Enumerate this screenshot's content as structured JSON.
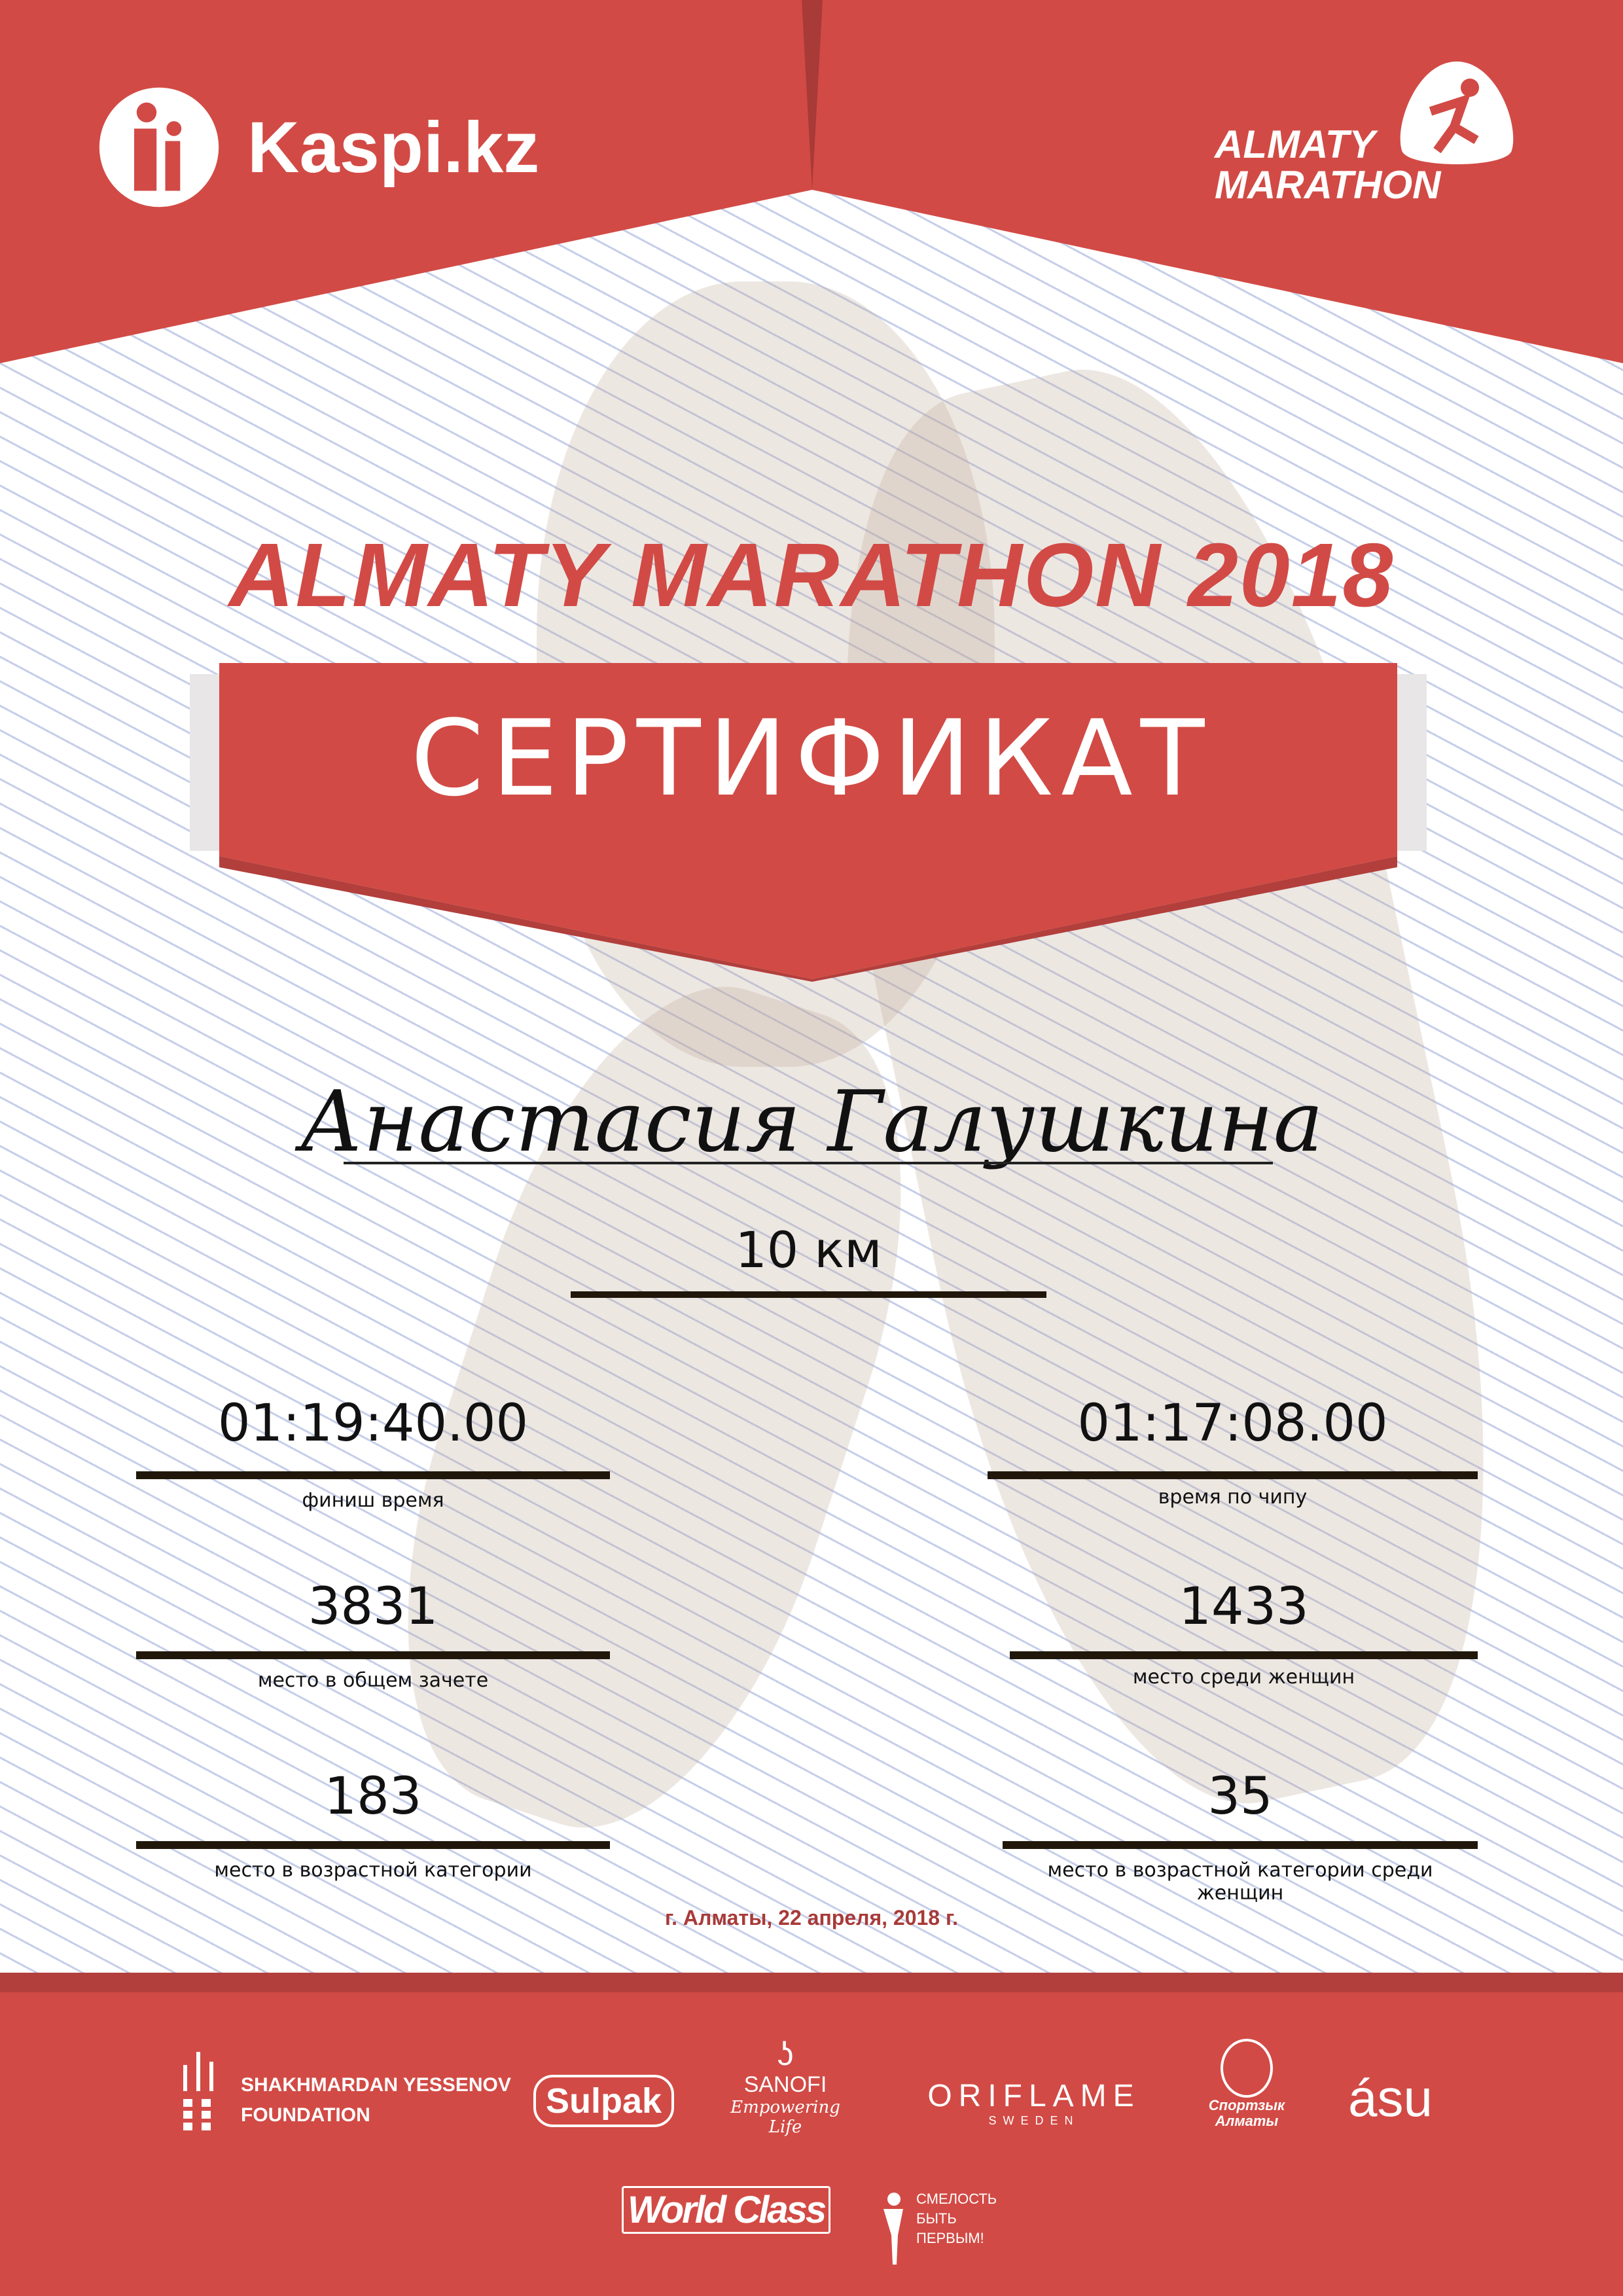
{
  "header": {
    "kaspi_logo": "Kaspi.kz",
    "marathon_logo": [
      "ALMATY",
      "MARATHON"
    ]
  },
  "title": "ALMATY MARATHON 2018",
  "banner": "СЕРТИФИКАТ",
  "participant_name": "Анастасия Галушкина",
  "distance": "10 км",
  "results": [
    {
      "value": "01:19:40.00",
      "label": "финиш время"
    },
    {
      "value": "01:17:08.00",
      "label": "время по чипу"
    },
    {
      "value": "3831",
      "label": "место в общем зачете"
    },
    {
      "value": "1433",
      "label": "место среди женщин"
    },
    {
      "value": "183",
      "label": "место в возрастной категории"
    },
    {
      "value": "35",
      "label": "место в возрастной категории среди женщин"
    }
  ],
  "date": "г. Алматы, 22 апреля, 2018 г.",
  "sponsors": {
    "yessenov": [
      "SHAKHMARDAN YESSENOV",
      "FOUNDATION"
    ],
    "sulpak": "Sulpak",
    "sanofi": [
      "SANOFI",
      "Empowering Life"
    ],
    "oriflame": [
      "ORIFLAME",
      "SWEDEN"
    ],
    "sport_almaty": [
      "Спортзык",
      "Алматы"
    ],
    "asu": "ásu",
    "worldclass": "World Class",
    "smelost": [
      "СМЕЛОСТЬ",
      "БЫТЬ",
      "ПЕРВЫМ!"
    ]
  },
  "colors": {
    "brand_red": "#d24a45",
    "dark_red": "#b23f3c",
    "line": "#20170a"
  }
}
